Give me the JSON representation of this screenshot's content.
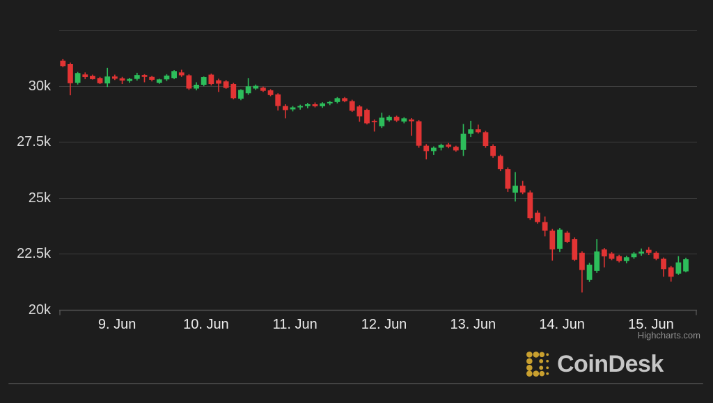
{
  "window": {
    "background": "#1d1d1d"
  },
  "chart_data": {
    "type": "candlestick",
    "title": "",
    "y_axis": {
      "min": 20,
      "max": 32.5,
      "gridline_values": [
        32.5,
        30,
        27.5,
        25,
        22.5
      ],
      "labels": [
        {
          "value": 30,
          "text": "30k"
        },
        {
          "value": 27.5,
          "text": "27.5k"
        },
        {
          "value": 25,
          "text": "25k"
        },
        {
          "value": 22.5,
          "text": "22.5k"
        },
        {
          "value": 20,
          "text": "20k"
        }
      ]
    },
    "x_axis": {
      "ticks": [
        {
          "index": 7.3,
          "label": "9. Jun"
        },
        {
          "index": 19.3,
          "label": "10. Jun"
        },
        {
          "index": 31.3,
          "label": "11. Jun"
        },
        {
          "index": 43.3,
          "label": "12. Jun"
        },
        {
          "index": 55.3,
          "label": "13. Jun"
        },
        {
          "index": 67.3,
          "label": "14. Jun"
        },
        {
          "index": 79.3,
          "label": "15. Jun"
        }
      ]
    },
    "series": [
      {
        "name": "price",
        "unit": "thousand USD",
        "ohlc": [
          [
            31.12,
            31.2,
            30.84,
            30.88
          ],
          [
            30.98,
            31.04,
            29.58,
            30.12
          ],
          [
            30.14,
            30.62,
            30.06,
            30.57
          ],
          [
            30.51,
            30.6,
            30.3,
            30.39
          ],
          [
            30.45,
            30.5,
            30.28,
            30.3
          ],
          [
            30.35,
            30.4,
            30.08,
            30.12
          ],
          [
            30.11,
            30.8,
            29.95,
            30.42
          ],
          [
            30.42,
            30.5,
            30.26,
            30.32
          ],
          [
            30.34,
            30.4,
            30.08,
            30.24
          ],
          [
            30.22,
            30.36,
            30.14,
            30.31
          ],
          [
            30.31,
            30.58,
            30.24,
            30.48
          ],
          [
            30.48,
            30.52,
            30.16,
            30.4
          ],
          [
            30.4,
            30.45,
            30.2,
            30.27
          ],
          [
            30.14,
            30.32,
            30.09,
            30.29
          ],
          [
            30.29,
            30.52,
            30.22,
            30.46
          ],
          [
            30.35,
            30.7,
            30.3,
            30.66
          ],
          [
            30.6,
            30.72,
            30.4,
            30.47
          ],
          [
            30.47,
            30.52,
            29.82,
            29.88
          ],
          [
            29.88,
            30.16,
            29.8,
            30.05
          ],
          [
            30.05,
            30.42,
            29.98,
            30.39
          ],
          [
            30.5,
            30.55,
            30.02,
            30.08
          ],
          [
            30.25,
            30.32,
            29.73,
            30.1
          ],
          [
            30.2,
            30.26,
            29.87,
            29.91
          ],
          [
            30.08,
            30.14,
            29.4,
            29.45
          ],
          [
            29.43,
            29.85,
            29.36,
            29.82
          ],
          [
            29.67,
            30.35,
            29.6,
            29.98
          ],
          [
            29.88,
            30.06,
            29.82,
            30.0
          ],
          [
            29.92,
            29.97,
            29.73,
            29.78
          ],
          [
            29.8,
            29.85,
            29.54,
            29.59
          ],
          [
            29.62,
            29.67,
            28.9,
            29.1
          ],
          [
            29.1,
            29.18,
            28.55,
            28.92
          ],
          [
            28.95,
            29.1,
            28.86,
            29.04
          ],
          [
            29.04,
            29.16,
            28.94,
            29.1
          ],
          [
            29.1,
            29.24,
            29.0,
            29.18
          ],
          [
            29.18,
            29.26,
            29.04,
            29.09
          ],
          [
            29.09,
            29.27,
            29.02,
            29.22
          ],
          [
            29.22,
            29.33,
            29.14,
            29.28
          ],
          [
            29.28,
            29.5,
            29.22,
            29.45
          ],
          [
            29.45,
            29.5,
            29.27,
            29.32
          ],
          [
            29.32,
            29.38,
            28.84,
            28.89
          ],
          [
            29.08,
            29.14,
            28.4,
            28.64
          ],
          [
            28.93,
            28.98,
            28.28,
            28.33
          ],
          [
            28.44,
            28.5,
            27.96,
            28.39
          ],
          [
            28.2,
            28.8,
            28.12,
            28.58
          ],
          [
            28.46,
            28.68,
            28.4,
            28.62
          ],
          [
            28.62,
            28.67,
            28.39,
            28.45
          ],
          [
            28.41,
            28.6,
            28.33,
            28.55
          ],
          [
            28.5,
            28.56,
            27.77,
            28.42
          ],
          [
            28.42,
            28.47,
            27.24,
            27.33
          ],
          [
            27.33,
            27.4,
            26.72,
            27.09
          ],
          [
            27.09,
            27.3,
            26.92,
            27.24
          ],
          [
            27.24,
            27.42,
            27.12,
            27.36
          ],
          [
            27.38,
            27.45,
            27.22,
            27.28
          ],
          [
            27.28,
            27.33,
            27.06,
            27.12
          ],
          [
            27.14,
            28.3,
            26.87,
            27.86
          ],
          [
            27.86,
            28.44,
            27.72,
            28.06
          ],
          [
            28.06,
            28.27,
            27.87,
            27.93
          ],
          [
            27.93,
            27.99,
            27.24,
            27.32
          ],
          [
            27.32,
            27.39,
            26.79,
            26.87
          ],
          [
            26.87,
            26.93,
            26.2,
            26.29
          ],
          [
            26.29,
            26.36,
            25.27,
            25.41
          ],
          [
            25.23,
            26.15,
            24.84,
            25.54
          ],
          [
            25.54,
            25.76,
            25.17,
            25.24
          ],
          [
            25.24,
            25.33,
            24.02,
            24.09
          ],
          [
            24.34,
            24.44,
            23.85,
            23.92
          ],
          [
            23.92,
            24.17,
            23.28,
            23.54
          ],
          [
            23.54,
            23.61,
            22.2,
            22.7
          ],
          [
            22.73,
            23.66,
            22.58,
            23.58
          ],
          [
            23.45,
            23.52,
            22.98,
            23.04
          ],
          [
            23.16,
            23.24,
            22.18,
            22.24
          ],
          [
            22.55,
            22.62,
            20.78,
            21.78
          ],
          [
            21.34,
            22.1,
            21.25,
            22.02
          ],
          [
            21.74,
            23.16,
            21.65,
            22.61
          ],
          [
            22.7,
            22.76,
            21.9,
            22.39
          ],
          [
            22.52,
            22.58,
            22.22,
            22.28
          ],
          [
            22.4,
            22.46,
            22.12,
            22.18
          ],
          [
            22.18,
            22.42,
            22.08,
            22.35
          ],
          [
            22.35,
            22.58,
            22.28,
            22.52
          ],
          [
            22.52,
            22.74,
            22.42,
            22.6
          ],
          [
            22.68,
            22.8,
            22.45,
            22.55
          ],
          [
            22.55,
            22.62,
            22.22,
            22.28
          ],
          [
            22.28,
            22.34,
            21.48,
            21.82
          ],
          [
            21.9,
            21.96,
            21.26,
            21.48
          ],
          [
            21.62,
            22.4,
            21.56,
            22.12
          ],
          [
            21.72,
            22.33,
            21.68,
            22.26
          ]
        ]
      }
    ],
    "colors": {
      "up": "#2dbd5b",
      "down": "#e23434",
      "grid": "#3e3e3e",
      "axis_line": "#505050",
      "label": "#ececec",
      "y_label": "#dcdcdc",
      "credit": "#8f8f8f"
    },
    "attribution": "Highcharts.com",
    "layout": {
      "plot_left": 85,
      "plot_right": 1001,
      "plot_top": 43,
      "plot_bottom": 446,
      "grid_on": true,
      "legend": "none"
    }
  },
  "footer": {
    "brand": "CoinDesk",
    "brand_color": "#c6c6c6",
    "icon_color": "#c9a02f",
    "icon": "coindesk-dotted-c-mark"
  }
}
